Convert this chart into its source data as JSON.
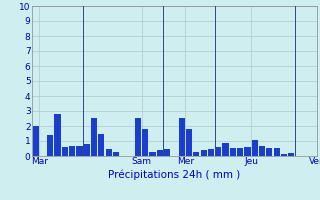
{
  "xlabel": "Précipitations 24h ( mm )",
  "background_color": "#ceeef0",
  "plot_background": "#ceeef0",
  "bar_color": "#1a3fcc",
  "grid_color": "#b0c8c8",
  "ylim": [
    0,
    10
  ],
  "yticks": [
    0,
    1,
    2,
    3,
    4,
    5,
    6,
    7,
    8,
    9,
    10
  ],
  "day_labels": [
    "Mar",
    "Sam",
    "Mer",
    "Jeu",
    "Ven"
  ],
  "day_x_positions": [
    0.5,
    14.5,
    20.5,
    29.5,
    38.5
  ],
  "vline_positions": [
    7,
    18,
    25,
    36
  ],
  "bars": [
    2.0,
    0.0,
    1.4,
    2.8,
    0.6,
    0.65,
    0.65,
    0.8,
    2.55,
    1.5,
    0.45,
    0.3,
    0.0,
    0.0,
    2.55,
    1.8,
    0.3,
    0.4,
    0.5,
    0.0,
    2.55,
    1.8,
    0.3,
    0.4,
    0.5,
    0.6,
    0.9,
    0.55,
    0.55,
    0.6,
    1.05,
    0.65,
    0.55,
    0.55,
    0.15,
    0.2,
    0.0
  ],
  "num_bars": 37
}
